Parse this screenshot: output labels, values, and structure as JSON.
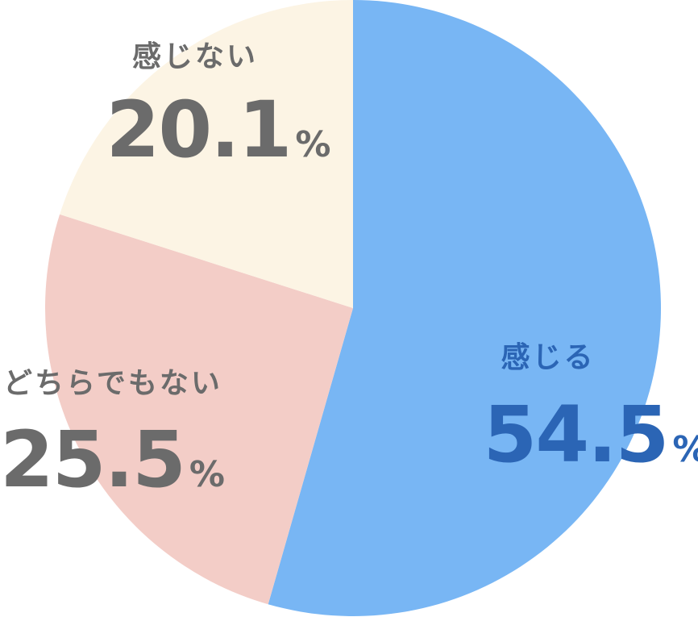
{
  "chart_data": {
    "type": "pie",
    "categories": [
      "感じる",
      "どちらでもない",
      "感じない"
    ],
    "values": [
      54.5,
      25.5,
      20.1
    ],
    "value_labels": [
      "54.5%",
      "25.5%",
      "20.1%"
    ],
    "colors": [
      "#78b6f4",
      "#f3cdc7",
      "#fcf4e4"
    ],
    "label_colors": [
      "#2b65b5",
      "#6b6b6b",
      "#6b6b6b"
    ]
  }
}
